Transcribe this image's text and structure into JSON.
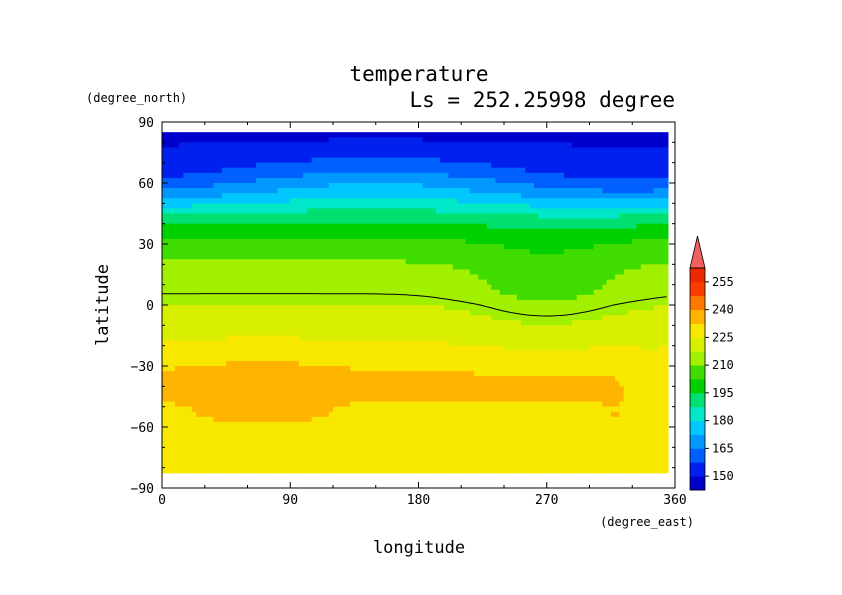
{
  "chart_data": {
    "type": "heatmap",
    "title": "temperature",
    "subtitle": "Ls = 252.25998 degree",
    "xlabel": "longitude",
    "ylabel": "latitude",
    "x_unit": "(degree_east)",
    "y_unit": "(degree_north)",
    "xlim": [
      0,
      360
    ],
    "ylim": [
      -90,
      90
    ],
    "x_ticks": [
      "0",
      "90",
      "180",
      "270",
      "360"
    ],
    "y_ticks": [
      "90",
      "60",
      "30",
      "0",
      "−30",
      "−60",
      "−90"
    ],
    "grid": false,
    "colorbar": {
      "levels": [
        150,
        165,
        180,
        195,
        210,
        225,
        240,
        255
      ],
      "labels": [
        "150",
        "165",
        "180",
        "195",
        "210",
        "225",
        "240",
        "255"
      ],
      "bin_colors": [
        "#0000cc",
        "#0020ee",
        "#0060ff",
        "#0098ff",
        "#00c8ff",
        "#00e8c8",
        "#00e070",
        "#00d000",
        "#40dc00",
        "#a0f000",
        "#d8f000",
        "#f8e800",
        "#ffb400",
        "#ff7800",
        "#ff3c00",
        "#ee2800",
        "#f06060"
      ],
      "extend": "max"
    },
    "latitudes": [
      85,
      80,
      75,
      70,
      65,
      60,
      55,
      50,
      45,
      40,
      35,
      30,
      25,
      20,
      15,
      10,
      5,
      0,
      -5,
      -10,
      -15,
      -20,
      -25,
      -30,
      -35,
      -40,
      -45,
      -50,
      -55,
      -60,
      -65,
      -70,
      -75,
      -80
    ],
    "zonal_profile": [
      148,
      150,
      153,
      156,
      160,
      166,
      172,
      180,
      188,
      195,
      200,
      205,
      208,
      211,
      213,
      214,
      215,
      218,
      220,
      222,
      224,
      226,
      228,
      232,
      233,
      233,
      233,
      232,
      232,
      231,
      230,
      229,
      228,
      227
    ],
    "contour_level": 215
  }
}
